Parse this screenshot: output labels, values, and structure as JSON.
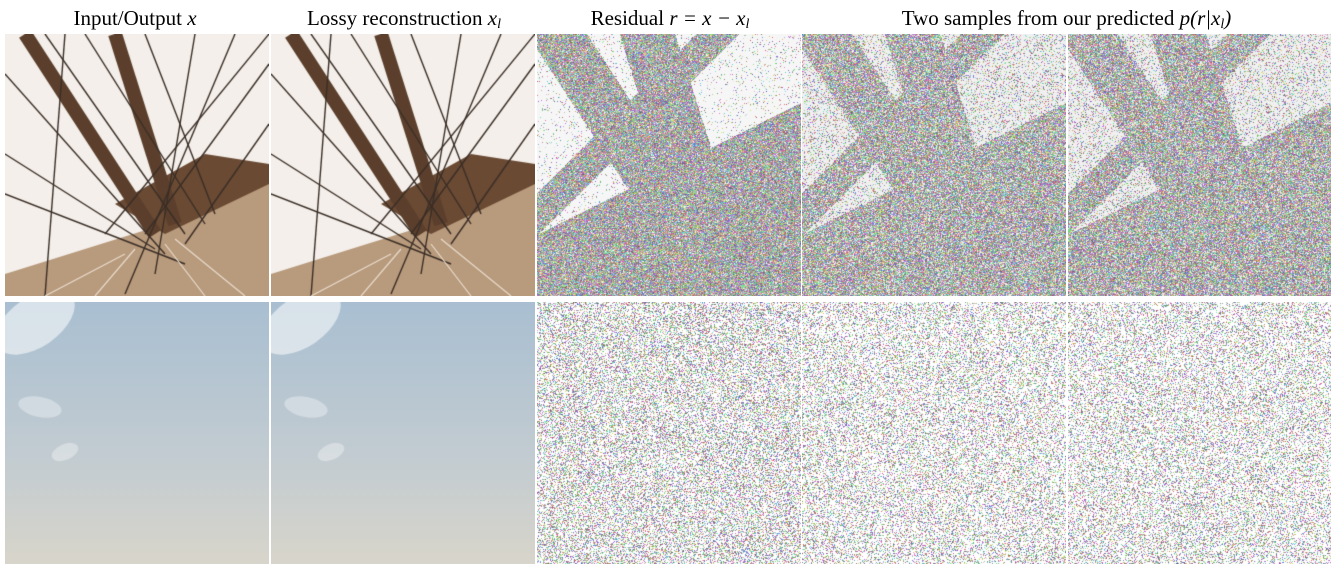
{
  "headers": {
    "input_output": "Input/Output",
    "input_output_math": "x",
    "lossy_recon": "Lossy reconstruction",
    "lossy_recon_math": "x",
    "lossy_recon_sub": "l",
    "residual": "Residual",
    "residual_math_lhs": "r = x − x",
    "residual_math_sub": "l",
    "samples": "Two samples from our predicted",
    "samples_math": "p(r|x",
    "samples_math_sub": "l",
    "samples_math_close": ")"
  },
  "rows": [
    {
      "row": "bridge",
      "panels": [
        "input-output",
        "lossy-reconstruction",
        "residual",
        "sample-1",
        "sample-2"
      ]
    },
    {
      "row": "sky",
      "panels": [
        "input-output",
        "lossy-reconstruction",
        "residual",
        "sample-1",
        "sample-2"
      ]
    }
  ]
}
